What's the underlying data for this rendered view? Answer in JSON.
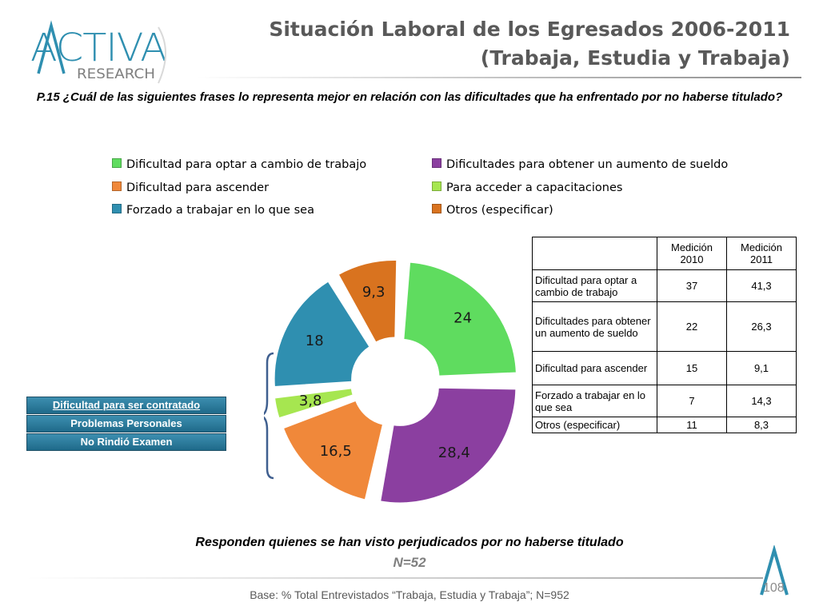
{
  "header": {
    "logo_main": "ACTIVA",
    "logo_sub": "RESEARCH",
    "title_line1": "Situación Laboral de los Egresados 2006-2011",
    "title_line2": "(Trabaja, Estudia y Trabaja)"
  },
  "question": "P.15 ¿Cuál de las siguientes frases lo representa mejor en relación con las dificultades que ha enfrentado por no haberse titulado?",
  "colors": {
    "green": "#5fdc5f",
    "purple": "#8b3fa0",
    "orange": "#f0883a",
    "lime": "#a6e650",
    "teal": "#2f8fb0",
    "dark_orange": "#d9731f",
    "side_box_blue": "#2a7a9b"
  },
  "chart_data": {
    "type": "pie",
    "style": "exploded doughnut",
    "legend_position": "top",
    "slices": [
      {
        "label": "Dificultad para optar a cambio de trabajo",
        "value": 24,
        "value_label": "24",
        "color": "#5fdc5f"
      },
      {
        "label": "Dificultades para obtener un aumento de sueldo",
        "value": 28.4,
        "value_label": "28,4",
        "color": "#8b3fa0"
      },
      {
        "label": "Dificultad para ascender",
        "value": 16.5,
        "value_label": "16,5",
        "color": "#f0883a"
      },
      {
        "label": "Para acceder a capacitaciones",
        "value": 3.8,
        "value_label": "3,8",
        "color": "#a6e650"
      },
      {
        "label": "Forzado a trabajar en lo que sea",
        "value": 18,
        "value_label": "18",
        "color": "#2f8fb0"
      },
      {
        "label": "Otros (especificar)",
        "value": 9.3,
        "value_label": "9,3",
        "color": "#d9731f"
      }
    ]
  },
  "legend": [
    {
      "label": "Dificultad para optar a cambio de trabajo",
      "color": "#5fdc5f"
    },
    {
      "label": "Dificultades para obtener un aumento de sueldo",
      "color": "#8b3fa0"
    },
    {
      "label": "Dificultad para ascender",
      "color": "#f0883a"
    },
    {
      "label": "Para acceder a capacitaciones",
      "color": "#a6e650"
    },
    {
      "label": "Forzado a trabajar en lo que sea",
      "color": "#2f8fb0"
    },
    {
      "label": "Otros (especificar)",
      "color": "#d9731f"
    }
  ],
  "side_box": [
    "Dificultad para ser contratado",
    "Problemas Personales",
    "No Rindió Examen"
  ],
  "table": {
    "headers": [
      "",
      "Medición 2010",
      "Medición 2011"
    ],
    "rows": [
      {
        "label": "Dificultad para optar a cambio de trabajo",
        "v2010": "37",
        "v2011": "41,3"
      },
      {
        "label": "Dificultades para obtener un aumento de sueldo",
        "v2010": "22",
        "v2011": "26,3"
      },
      {
        "label": "Dificultad para ascender",
        "v2010": "15",
        "v2011": "9,1"
      },
      {
        "label": "Forzado a trabajar en lo que sea",
        "v2010": "7",
        "v2011": "14,3"
      },
      {
        "label": "Otros (especificar)",
        "v2010": "11",
        "v2011": "8,3"
      }
    ]
  },
  "footer": {
    "note": "Responden quienes se han visto perjudicados por no haberse titulado",
    "n": "N=52",
    "base": "Base: % Total Entrevistados “Trabaja, Estudia y Trabaja”; N=952",
    "page": "108"
  }
}
